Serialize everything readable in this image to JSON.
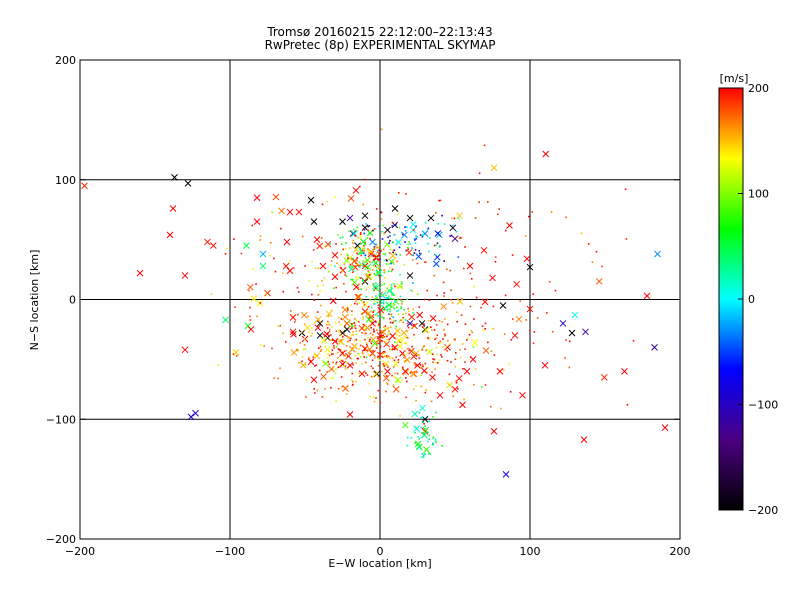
{
  "chart_data": {
    "type": "scatter",
    "title": "Tromsø 20160215 22:12:00–22:13:43",
    "subtitle": "RwPretec (8p) EXPERIMENTAL SKYMAP",
    "xlabel": "E−W location [km]",
    "ylabel": "N−S location [km]",
    "xlim": [
      -200,
      200
    ],
    "ylim": [
      -200,
      200
    ],
    "xticks": [
      -200,
      -100,
      0,
      100,
      200
    ],
    "yticks": [
      -200,
      -100,
      0,
      100,
      200
    ],
    "xtick_labels": [
      "−200",
      "−100",
      "0",
      "100",
      "200"
    ],
    "ytick_labels": [
      "−200",
      "−100",
      "0",
      "100",
      "200"
    ],
    "grid_lines": [
      -100,
      0,
      100
    ],
    "colorbar": {
      "label": "[m/s]",
      "range": [
        -200,
        200
      ],
      "ticks": [
        200,
        100,
        0,
        -100,
        -200
      ],
      "tick_labels": [
        "200",
        "100",
        "0",
        "−100",
        "−200"
      ],
      "colors": [
        "#000000",
        "#4b0082",
        "#0000ff",
        "#00ffff",
        "#00ff00",
        "#ffff00",
        "#ff0000"
      ]
    },
    "markers": {
      "cross": "large meteor detection",
      "dot": "small meteor detection"
    },
    "points": [
      {
        "x": -197,
        "y": 95,
        "v": 190,
        "m": "x"
      },
      {
        "x": -137,
        "y": 102,
        "v": -200,
        "m": "x"
      },
      {
        "x": -128,
        "y": 97,
        "v": -200,
        "m": "x"
      },
      {
        "x": -138,
        "y": 76,
        "v": 200,
        "m": "x"
      },
      {
        "x": -140,
        "y": 54,
        "v": 200,
        "m": "x"
      },
      {
        "x": -115,
        "y": 48,
        "v": 190,
        "m": "x"
      },
      {
        "x": -89,
        "y": 45,
        "v": 50,
        "m": "x"
      },
      {
        "x": -78,
        "y": 38,
        "v": -20,
        "m": "x"
      },
      {
        "x": -78,
        "y": 28,
        "v": 40,
        "m": "x"
      },
      {
        "x": -82,
        "y": 85,
        "v": 200,
        "m": "x"
      },
      {
        "x": -82,
        "y": 65,
        "v": 200,
        "m": "x"
      },
      {
        "x": -60,
        "y": 73,
        "v": 200,
        "m": "x"
      },
      {
        "x": -54,
        "y": 73,
        "v": 200,
        "m": "x"
      },
      {
        "x": -46,
        "y": 83,
        "v": -200,
        "m": "x"
      },
      {
        "x": -44,
        "y": 65,
        "v": -200,
        "m": "x"
      },
      {
        "x": -20,
        "y": 68,
        "v": -120,
        "m": "x"
      },
      {
        "x": -10,
        "y": 70,
        "v": -200,
        "m": "x"
      },
      {
        "x": 10,
        "y": 76,
        "v": -200,
        "m": "x"
      },
      {
        "x": 20,
        "y": 68,
        "v": -200,
        "m": "x"
      },
      {
        "x": 34,
        "y": 68,
        "v": -200,
        "m": "x"
      },
      {
        "x": 53,
        "y": 70,
        "v": 150,
        "m": "x"
      },
      {
        "x": 76,
        "y": 110,
        "v": 150,
        "m": "x"
      },
      {
        "x": 98,
        "y": 34,
        "v": 200,
        "m": "x"
      },
      {
        "x": 100,
        "y": 27,
        "v": -200,
        "m": "x"
      },
      {
        "x": 185,
        "y": 38,
        "v": -30,
        "m": "x"
      },
      {
        "x": 178,
        "y": 3,
        "v": 200,
        "m": "x"
      },
      {
        "x": 183,
        "y": -40,
        "v": -120,
        "m": "x"
      },
      {
        "x": 128,
        "y": -28,
        "v": -200,
        "m": "x"
      },
      {
        "x": 137,
        "y": -27,
        "v": -120,
        "m": "x"
      },
      {
        "x": 130,
        "y": -13,
        "v": 0,
        "m": "x"
      },
      {
        "x": 122,
        "y": -20,
        "v": -90,
        "m": "x"
      },
      {
        "x": 190,
        "y": -107,
        "v": 200,
        "m": "x"
      },
      {
        "x": 136,
        "y": -117,
        "v": 200,
        "m": "x"
      },
      {
        "x": 84,
        "y": -146,
        "v": -80,
        "m": "x"
      },
      {
        "x": 76,
        "y": -110,
        "v": 200,
        "m": "x"
      },
      {
        "x": -126,
        "y": -98,
        "v": -90,
        "m": "x"
      },
      {
        "x": -123,
        "y": -95,
        "v": -90,
        "m": "x"
      },
      {
        "x": -130,
        "y": -42,
        "v": 200,
        "m": "x"
      },
      {
        "x": -103,
        "y": -17,
        "v": 40,
        "m": "x"
      },
      {
        "x": -88,
        "y": -22,
        "v": 60,
        "m": "x"
      },
      {
        "x": -86,
        "y": -25,
        "v": 200,
        "m": "x"
      },
      {
        "x": -58,
        "y": -27,
        "v": 200,
        "m": "x"
      },
      {
        "x": -52,
        "y": -28,
        "v": -200,
        "m": "x"
      },
      {
        "x": -50,
        "y": -33,
        "v": 200,
        "m": "x"
      },
      {
        "x": -46,
        "y": -52,
        "v": 200,
        "m": "x"
      },
      {
        "x": -44,
        "y": -67,
        "v": 200,
        "m": "x"
      },
      {
        "x": -20,
        "y": -96,
        "v": 200,
        "m": "x"
      },
      {
        "x": 30,
        "y": -100,
        "v": -200,
        "m": "x"
      },
      {
        "x": 30,
        "y": -110,
        "v": 200,
        "m": "x"
      },
      {
        "x": 50,
        "y": -75,
        "v": 200,
        "m": "x"
      },
      {
        "x": 82,
        "y": -5,
        "v": -200,
        "m": "x"
      },
      {
        "x": 70,
        "y": -2,
        "v": 200,
        "m": "x"
      },
      {
        "x": -6,
        "y": 38,
        "v": 200,
        "m": "x"
      },
      {
        "x": -10,
        "y": 28,
        "v": 200,
        "m": "x"
      },
      {
        "x": -2,
        "y": 35,
        "v": 200,
        "m": "x"
      },
      {
        "x": -15,
        "y": 45,
        "v": -200,
        "m": "x"
      },
      {
        "x": -18,
        "y": 55,
        "v": -120,
        "m": "x"
      },
      {
        "x": -5,
        "y": 48,
        "v": -30,
        "m": "x"
      },
      {
        "x": 5,
        "y": 58,
        "v": -200,
        "m": "x"
      },
      {
        "x": 22,
        "y": 58,
        "v": 0,
        "m": "x"
      },
      {
        "x": 30,
        "y": 55,
        "v": -30,
        "m": "x"
      },
      {
        "x": -5,
        "y": -20,
        "v": 200,
        "m": "x"
      },
      {
        "x": 10,
        "y": -40,
        "v": 200,
        "m": "x"
      },
      {
        "x": 25,
        "y": -55,
        "v": 200,
        "m": "x"
      },
      {
        "x": -30,
        "y": -35,
        "v": 200,
        "m": "x"
      },
      {
        "x": -20,
        "y": -55,
        "v": 200,
        "m": "x"
      },
      {
        "x": 45,
        "y": -40,
        "v": 200,
        "m": "x"
      },
      {
        "x": 58,
        "y": -60,
        "v": 200,
        "m": "x"
      },
      {
        "x": 5,
        "y": -60,
        "v": 200,
        "m": "x"
      },
      {
        "x": -40,
        "y": -20,
        "v": -200,
        "m": "x"
      },
      {
        "x": 30,
        "y": -25,
        "v": -200,
        "m": "x"
      },
      {
        "x": 20,
        "y": -20,
        "v": -100,
        "m": "x"
      },
      {
        "x": -2,
        "y": -62,
        "v": -200,
        "m": "x"
      },
      {
        "x": 100,
        "y": -8,
        "v": 200,
        "m": "x"
      },
      {
        "x": 110,
        "y": -55,
        "v": 200,
        "m": "x"
      },
      {
        "x": 163,
        "y": -60,
        "v": 200,
        "m": "x"
      },
      {
        "x": -160,
        "y": 22,
        "v": 200,
        "m": "x"
      },
      {
        "x": -130,
        "y": 20,
        "v": 200,
        "m": "x"
      },
      {
        "x": -30,
        "y": 37,
        "v": 200,
        "m": "x"
      },
      {
        "x": -38,
        "y": 28,
        "v": 200,
        "m": "x"
      },
      {
        "x": -30,
        "y": 19,
        "v": 200,
        "m": "x"
      },
      {
        "x": -60,
        "y": 24,
        "v": 200,
        "m": "x"
      },
      {
        "x": -62,
        "y": 48,
        "v": 200,
        "m": "x"
      },
      {
        "x": -42,
        "y": 50,
        "v": 200,
        "m": "x"
      },
      {
        "x": 60,
        "y": 28,
        "v": 200,
        "m": "x"
      },
      {
        "x": 75,
        "y": 18,
        "v": 200,
        "m": "x"
      },
      {
        "x": 90,
        "y": -30,
        "v": 200,
        "m": "x"
      },
      {
        "x": 62,
        "y": -50,
        "v": 200,
        "m": "x"
      },
      {
        "x": 40,
        "y": -80,
        "v": 200,
        "m": "x"
      },
      {
        "x": 55,
        "y": -88,
        "v": 200,
        "m": "x"
      },
      {
        "x": -58,
        "y": -15,
        "v": 200,
        "m": "x"
      },
      {
        "x": -10,
        "y": -10,
        "v": 200,
        "m": "x"
      },
      {
        "x": 0,
        "y": -30,
        "v": 200,
        "m": "x"
      },
      {
        "x": 15,
        "y": -45,
        "v": 200,
        "m": "x"
      },
      {
        "x": -25,
        "y": -45,
        "v": 200,
        "m": "x"
      },
      {
        "x": 35,
        "y": -65,
        "v": 200,
        "m": "x"
      },
      {
        "x": -12,
        "y": -62,
        "v": 200,
        "m": "x"
      },
      {
        "x": 80,
        "y": -60,
        "v": 200,
        "m": "x"
      },
      {
        "x": 95,
        "y": -80,
        "v": 200,
        "m": "x"
      },
      {
        "x": 20,
        "y": 20,
        "v": -200,
        "m": "x"
      },
      {
        "x": -25,
        "y": -28,
        "v": -200,
        "m": "x"
      },
      {
        "x": -35,
        "y": -32,
        "v": -200,
        "m": "x"
      },
      {
        "x": -22,
        "y": -25,
        "v": -200,
        "m": "x"
      },
      {
        "x": -40,
        "y": -30,
        "v": -200,
        "m": "x"
      },
      {
        "x": -10,
        "y": 15,
        "v": -200,
        "m": "x"
      },
      {
        "x": -10,
        "y": 60,
        "v": -200,
        "m": "x"
      },
      {
        "x": -25,
        "y": 65,
        "v": -200,
        "m": "x"
      },
      {
        "x": 28,
        "y": -20,
        "v": -200,
        "m": "x"
      }
    ]
  }
}
